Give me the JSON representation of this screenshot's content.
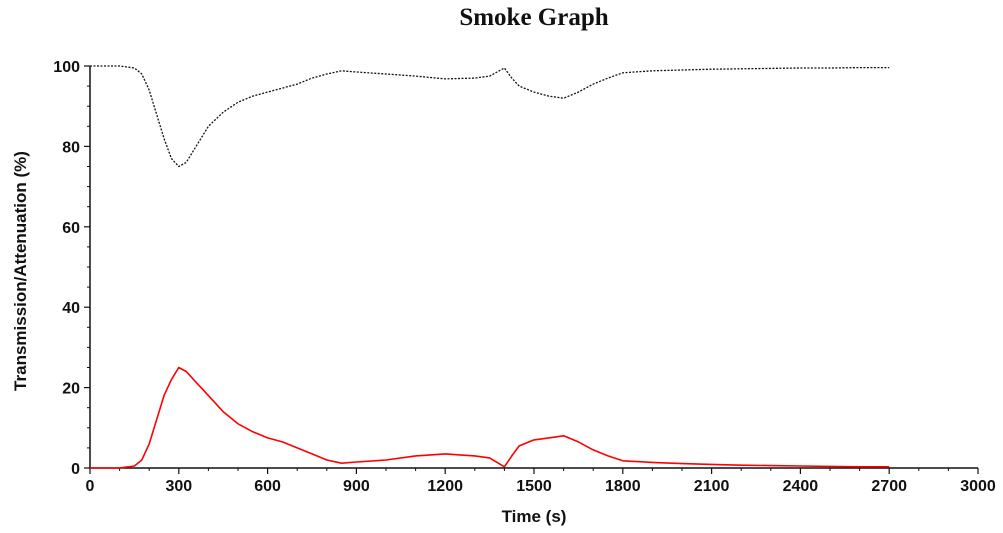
{
  "chart_data": {
    "type": "line",
    "title": "Smoke Graph",
    "xlabel": "Time (s)",
    "ylabel": "Transmission/Attenuation (%)",
    "xlim": [
      0,
      3000
    ],
    "ylim": [
      0,
      100
    ],
    "x_ticks": [
      0,
      300,
      600,
      900,
      1200,
      1500,
      1800,
      2100,
      2400,
      2700,
      3000
    ],
    "y_ticks": [
      0,
      20,
      40,
      60,
      80,
      100
    ],
    "grid": false,
    "legend": "none",
    "series": [
      {
        "color": "#111111",
        "style": "dotted",
        "x": [
          0,
          50,
          100,
          150,
          175,
          200,
          225,
          250,
          275,
          300,
          325,
          350,
          375,
          400,
          450,
          500,
          550,
          600,
          650,
          700,
          750,
          800,
          850,
          900,
          1000,
          1100,
          1200,
          1300,
          1350,
          1400,
          1425,
          1450,
          1500,
          1550,
          1600,
          1650,
          1700,
          1750,
          1800,
          1900,
          2000,
          2100,
          2200,
          2300,
          2400,
          2500,
          2600,
          2700
        ],
        "y": [
          100,
          100,
          100,
          99.5,
          98,
          94,
          88,
          82,
          77,
          75,
          76,
          79,
          82,
          85,
          88.5,
          91,
          92.5,
          93.5,
          94.5,
          95.5,
          97,
          98,
          98.8,
          98.5,
          98,
          97.5,
          96.8,
          97,
          97.5,
          99.5,
          97,
          95,
          93.5,
          92.5,
          92,
          93.5,
          95.5,
          97,
          98.3,
          98.8,
          99,
          99.2,
          99.3,
          99.4,
          99.5,
          99.5,
          99.6,
          99.6
        ]
      },
      {
        "color": "#ff0000",
        "style": "solid",
        "x": [
          0,
          50,
          100,
          150,
          175,
          200,
          225,
          250,
          275,
          300,
          325,
          350,
          375,
          400,
          450,
          500,
          550,
          600,
          650,
          700,
          750,
          800,
          850,
          900,
          1000,
          1100,
          1200,
          1300,
          1350,
          1400,
          1425,
          1450,
          1500,
          1550,
          1600,
          1650,
          1700,
          1750,
          1800,
          1900,
          2000,
          2100,
          2200,
          2300,
          2400,
          2500,
          2600,
          2700
        ],
        "y": [
          0,
          0,
          0,
          0.5,
          2,
          6,
          12,
          18,
          22,
          25,
          24,
          22,
          20,
          18,
          14,
          11,
          9,
          7.5,
          6.5,
          5,
          3.5,
          2,
          1.2,
          1.5,
          2,
          3,
          3.5,
          3,
          2.5,
          0.3,
          3,
          5.5,
          7,
          7.5,
          8,
          6.5,
          4.5,
          3,
          1.8,
          1.4,
          1.1,
          0.9,
          0.7,
          0.6,
          0.5,
          0.4,
          0.3,
          0.3
        ]
      }
    ]
  }
}
